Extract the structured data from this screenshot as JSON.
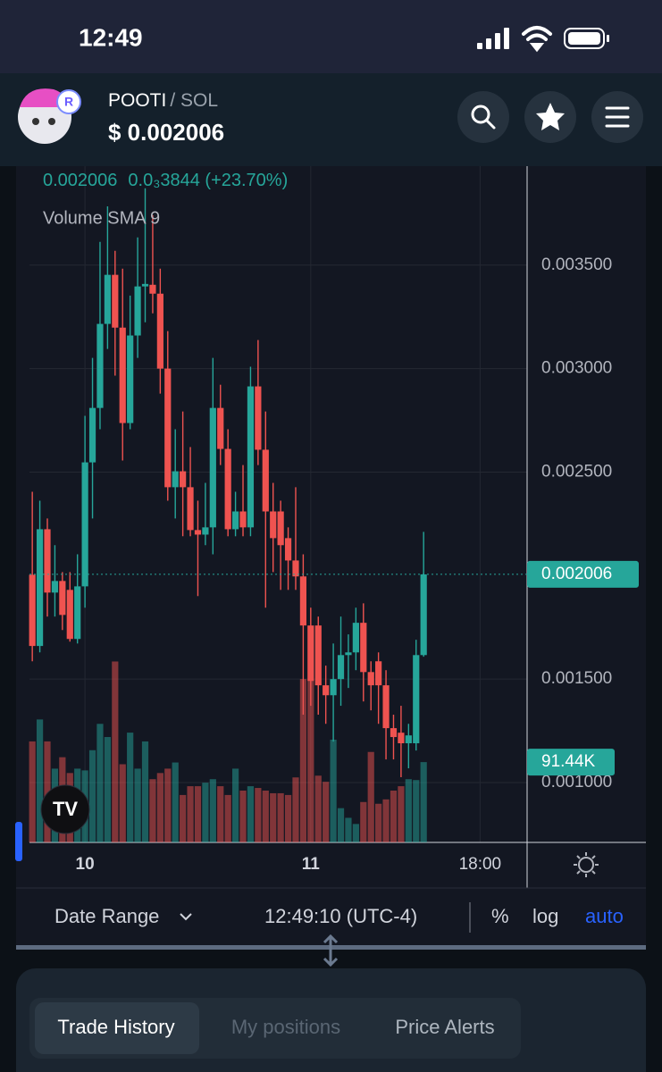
{
  "status_bar": {
    "time": "12:49"
  },
  "header": {
    "symbol": "POOTI",
    "pair": "/ SOL",
    "price": "$ 0.002006"
  },
  "chart_data": {
    "type": "candlestick",
    "legend_price": "0.002006",
    "legend_change": "0.0₃3844 (+23.70%)",
    "indicator": "Volume SMA 9",
    "up_color": "#26a69a",
    "down_color": "#ef5350",
    "grid": true,
    "x": [
      -5.6,
      -4.8,
      -4,
      -3.2,
      -2.4,
      -1.6,
      -0.8,
      0,
      0.8,
      1.6,
      2.4,
      3.2,
      4,
      4.8,
      5.6,
      6.4,
      7.2,
      8,
      8.8,
      9.6,
      10.4,
      11.2,
      12,
      12.8,
      13.6,
      14.4,
      15.2,
      16,
      16.8,
      17.6,
      18.4,
      19.2,
      20,
      20.8,
      21.6,
      22.4,
      23.2,
      24,
      24.8,
      25.6,
      26.4,
      27.2,
      28,
      28.8,
      29.6,
      30.4,
      31.2,
      32,
      32.8,
      33.6,
      34.4,
      35.2,
      36
    ],
    "candles": [
      [
        0.002004,
        0.002405,
        0.001586,
        0.00166
      ],
      [
        0.00166,
        0.002362,
        0.001629,
        0.002224
      ],
      [
        0.002224,
        0.002276,
        0.001802,
        0.001918
      ],
      [
        0.001918,
        0.002147,
        0.001802,
        0.001974
      ],
      [
        0.001974,
        0.002017,
        0.001737,
        0.00181
      ],
      [
        0.001931,
        0.002017,
        0.001681,
        0.001694
      ],
      [
        0.001694,
        0.002103,
        0.001672,
        0.001948
      ],
      [
        0.001948,
        0.002772,
        0.001845,
        0.002547
      ],
      [
        0.002547,
        0.003052,
        0.002276,
        0.00281
      ],
      [
        0.00281,
        0.003612,
        0.002707,
        0.003216
      ],
      [
        0.003216,
        0.003784,
        0.003095,
        0.003453
      ],
      [
        0.003453,
        0.003569,
        0.002966,
        0.003198
      ],
      [
        0.003198,
        0.003483,
        0.002556,
        0.002737
      ],
      [
        0.002737,
        0.003353,
        0.002707,
        0.00316
      ],
      [
        0.00316,
        0.003634,
        0.003052,
        0.003397
      ],
      [
        0.003397,
        0.003871,
        0.003224,
        0.003409
      ],
      [
        0.003405,
        0.003741,
        0.003267,
        0.003362
      ],
      [
        0.003362,
        0.003483,
        0.002879,
        0.003
      ],
      [
        0.003,
        0.003181,
        0.002362,
        0.002427
      ],
      [
        0.002427,
        0.002707,
        0.002276,
        0.002504
      ],
      [
        0.002504,
        0.002793,
        0.00219,
        0.002427
      ],
      [
        0.002427,
        0.002621,
        0.00219,
        0.00222
      ],
      [
        0.00222,
        0.002362,
        0.001901,
        0.002198
      ],
      [
        0.002198,
        0.002448,
        0.002147,
        0.002233
      ],
      [
        0.002233,
        0.003052,
        0.002103,
        0.00281
      ],
      [
        0.00281,
        0.002922,
        0.002534,
        0.002612
      ],
      [
        0.002612,
        0.002707,
        0.00219,
        0.002224
      ],
      [
        0.002224,
        0.002405,
        0.00219,
        0.00231
      ],
      [
        0.00231,
        0.002534,
        0.00219,
        0.002233
      ],
      [
        0.002233,
        0.003009,
        0.00219,
        0.002914
      ],
      [
        0.002914,
        0.003138,
        0.002534,
        0.002608
      ],
      [
        0.002608,
        0.002793,
        0.001845,
        0.00231
      ],
      [
        0.00231,
        0.002448,
        0.002017,
        0.002181
      ],
      [
        0.00231,
        0.002362,
        0.001931,
        0.002147
      ],
      [
        0.002181,
        0.002233,
        0.001931,
        0.002073
      ],
      [
        0.002073,
        0.002427,
        0.001931,
        0.001996
      ],
      [
        0.001996,
        0.002103,
        0.001328,
        0.001759
      ],
      [
        0.001759,
        0.001845,
        0.001371,
        0.001491
      ],
      [
        0.001759,
        0.001802,
        0.001328,
        0.00147
      ],
      [
        0.00147,
        0.001565,
        0.001284,
        0.001422
      ],
      [
        0.001422,
        0.001672,
        0.001198,
        0.0015
      ],
      [
        0.0015,
        0.001802,
        0.001371,
        0.001616
      ],
      [
        0.001616,
        0.001716,
        0.001457,
        0.001629
      ],
      [
        0.001629,
        0.001845,
        0.001543,
        0.001772
      ],
      [
        0.001772,
        0.001866,
        0.001392,
        0.001534
      ],
      [
        0.001534,
        0.001586,
        0.001349,
        0.00147
      ],
      [
        0.001586,
        0.001629,
        0.001284,
        0.00147
      ],
      [
        0.00147,
        0.001543,
        0.001112,
        0.001263
      ],
      [
        0.001263,
        0.001328,
        0.001112,
        0.00122
      ],
      [
        0.001241,
        0.001371,
        0.001026,
        0.00119
      ],
      [
        0.00119,
        0.001284,
        0.001069,
        0.001228
      ],
      [
        0.00119,
        0.00169,
        0.001155,
        0.001616
      ],
      [
        0.001616,
        0.002211,
        0.001608,
        0.002006
      ]
    ],
    "volumes": [
      115000,
      140000,
      115000,
      84000,
      97000,
      79000,
      84000,
      82000,
      105000,
      135000,
      120000,
      206000,
      89000,
      125000,
      84000,
      115000,
      72000,
      79000,
      84000,
      91000,
      54000,
      64000,
      64000,
      68000,
      72000,
      64000,
      54000,
      84000,
      59000,
      64000,
      62000,
      59000,
      56000,
      56000,
      54000,
      74000,
      186000,
      186000,
      76000,
      69000,
      117000,
      39000,
      28000,
      21000,
      46000,
      103000,
      44000,
      49000,
      59000,
      64000,
      72000,
      71000,
      91440
    ],
    "xlim": [
      -5.9,
      47
    ],
    "xticks": [
      {
        "value": 0,
        "label": "10"
      },
      {
        "value": 24,
        "label": "11"
      },
      {
        "value": 42,
        "label": "18:00"
      }
    ],
    "ylim": [
      0.000711,
      0.003978
    ],
    "yticks": [
      {
        "value": 0.001,
        "label": "0.001000"
      },
      {
        "value": 0.0015,
        "label": "0.001500"
      },
      {
        "value": 0.0025,
        "label": "0.002500"
      },
      {
        "value": 0.003,
        "label": "0.003000"
      },
      {
        "value": 0.0035,
        "label": "0.003500"
      }
    ],
    "vlim": [
      0,
      770000
    ],
    "last_price": 0.002006,
    "volume_label": {
      "value": 91440,
      "label": "91.44K"
    }
  },
  "toolbar": {
    "date_range": "Date Range",
    "clock": "12:49:10 (UTC-4)",
    "percent": "%",
    "log": "log",
    "auto": "auto"
  },
  "tabs": [
    "Trade History",
    "My positions",
    "Price Alerts"
  ]
}
